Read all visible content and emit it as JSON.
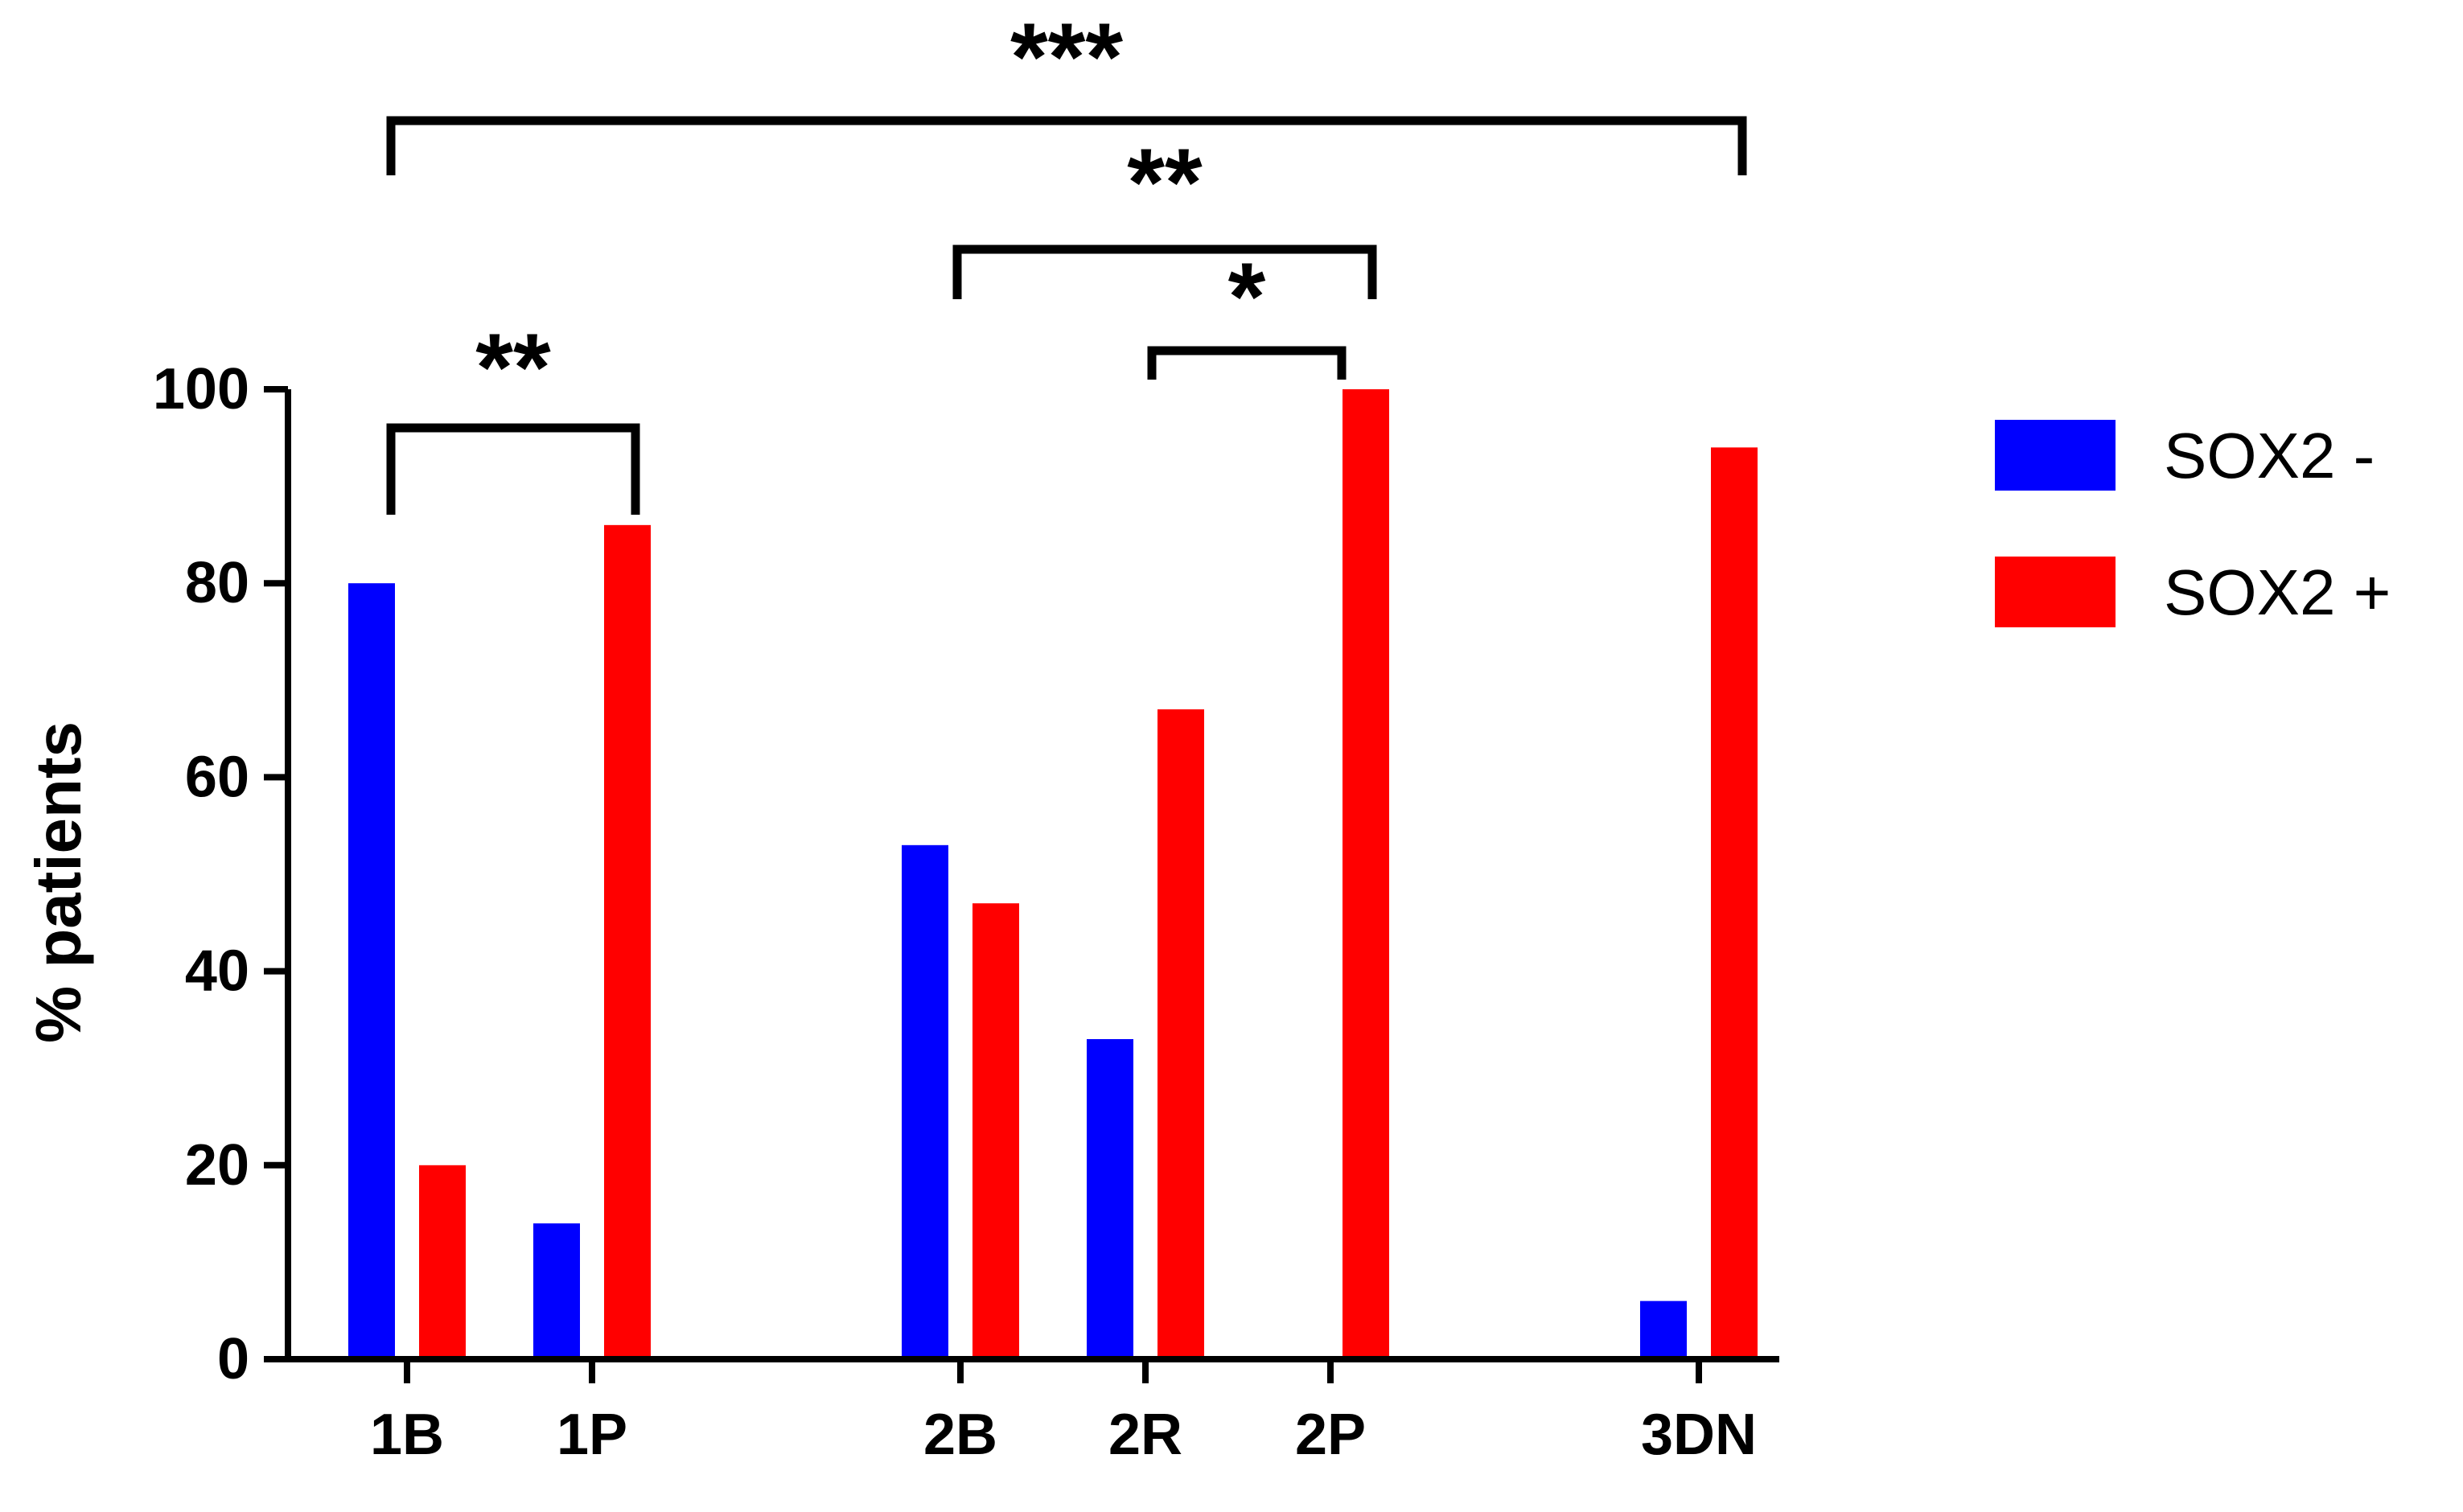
{
  "chart_data": {
    "type": "bar",
    "title": "",
    "xlabel": "",
    "ylabel": "% patients",
    "ylim": [
      0,
      100
    ],
    "yticks": [
      "0",
      "20",
      "40",
      "60",
      "80",
      "100"
    ],
    "categories": [
      "1B",
      "1P",
      "2B",
      "2R",
      "2P",
      "3DN"
    ],
    "series": [
      {
        "name": "SOX2 -",
        "color": "#0000ff",
        "values": [
          80,
          14,
          53,
          33,
          0,
          6
        ]
      },
      {
        "name": "SOX2 +",
        "color": "#ff0000",
        "values": [
          20,
          86,
          47,
          67,
          100,
          94
        ]
      }
    ],
    "grid": false,
    "legend_position": "right",
    "significance": [
      {
        "from": "1B",
        "to": "1P",
        "label": "**"
      },
      {
        "from": "2R",
        "to": "2P",
        "label": "*"
      },
      {
        "from": "2B",
        "to": "2P",
        "label": "**"
      },
      {
        "from": "1B",
        "to": "3DN",
        "label": "***"
      }
    ]
  }
}
